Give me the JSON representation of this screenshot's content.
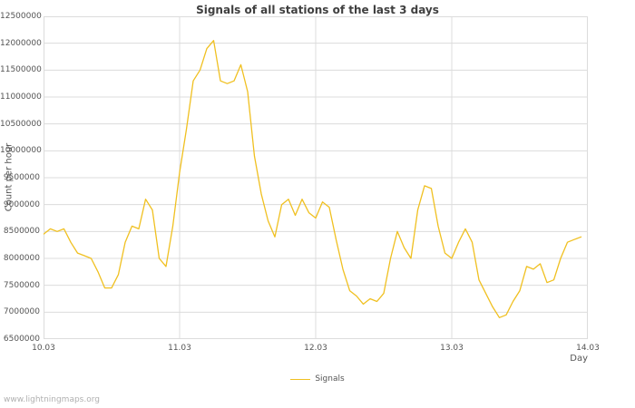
{
  "title": "Signals of all stations of the last 3 days",
  "watermark": "www.lightningmaps.org",
  "chart_data": {
    "type": "line",
    "title": "Signals of all stations of the last 3 days",
    "xlabel": "Day",
    "ylabel": "Count per hour",
    "xlim": [
      0,
      4
    ],
    "ylim": [
      6500000,
      12500000
    ],
    "grid": true,
    "legend_position": "bottom-center",
    "x_tick_values": [
      0,
      1,
      2,
      3,
      4
    ],
    "x_tick_labels": [
      "10.03",
      "11.03",
      "12.03",
      "13.03",
      "14.03"
    ],
    "y_tick_values": [
      6500000,
      7000000,
      7500000,
      8000000,
      8500000,
      9000000,
      9500000,
      10000000,
      10500000,
      11000000,
      11500000,
      12000000,
      12500000
    ],
    "y_tick_labels": [
      "6500000",
      "7000000",
      "7500000",
      "8000000",
      "8500000",
      "9000000",
      "9500000",
      "10000000",
      "10500000",
      "11000000",
      "11500000",
      "12000000",
      "12500000"
    ],
    "colors": {
      "line": "#f0c020",
      "grid": "#dcdcdc",
      "text": "#545454"
    },
    "series": [
      {
        "name": "Signals",
        "color": "#f0c020",
        "x": [
          0,
          0.05,
          0.1,
          0.15,
          0.2,
          0.25,
          0.3,
          0.35,
          0.4,
          0.45,
          0.5,
          0.55,
          0.6,
          0.65,
          0.7,
          0.75,
          0.8,
          0.85,
          0.9,
          0.95,
          1.0,
          1.05,
          1.1,
          1.15,
          1.2,
          1.25,
          1.3,
          1.35,
          1.4,
          1.45,
          1.5,
          1.55,
          1.6,
          1.65,
          1.7,
          1.75,
          1.8,
          1.85,
          1.9,
          1.95,
          2.0,
          2.05,
          2.1,
          2.15,
          2.2,
          2.25,
          2.3,
          2.35,
          2.4,
          2.45,
          2.5,
          2.55,
          2.6,
          2.65,
          2.7,
          2.75,
          2.8,
          2.85,
          2.9,
          2.95,
          3.0,
          3.05,
          3.1,
          3.15,
          3.2,
          3.25,
          3.3,
          3.35,
          3.4,
          3.45,
          3.5,
          3.55,
          3.6,
          3.65,
          3.7,
          3.75,
          3.8,
          3.85,
          3.9,
          3.95
        ],
        "values": [
          8450000,
          8550000,
          8500000,
          8550000,
          8300000,
          8100000,
          8050000,
          8000000,
          7750000,
          7450000,
          7450000,
          7700000,
          8300000,
          8600000,
          8550000,
          9100000,
          8900000,
          8000000,
          7850000,
          8600000,
          9600000,
          10400000,
          11300000,
          11500000,
          11900000,
          12050000,
          11300000,
          11250000,
          11300000,
          11600000,
          11100000,
          9900000,
          9200000,
          8700000,
          8400000,
          9000000,
          9100000,
          8800000,
          9100000,
          8850000,
          8750000,
          9050000,
          8950000,
          8350000,
          7800000,
          7400000,
          7300000,
          7150000,
          7250000,
          7200000,
          7350000,
          8000000,
          8500000,
          8200000,
          8000000,
          8900000,
          9350000,
          9300000,
          8600000,
          8100000,
          8000000,
          8300000,
          8550000,
          8300000,
          7600000,
          7350000,
          7100000,
          6900000,
          6950000,
          7200000,
          7400000,
          7850000,
          7800000,
          7900000,
          7550000,
          7600000,
          8000000,
          8300000,
          8350000,
          8400000
        ]
      }
    ]
  }
}
